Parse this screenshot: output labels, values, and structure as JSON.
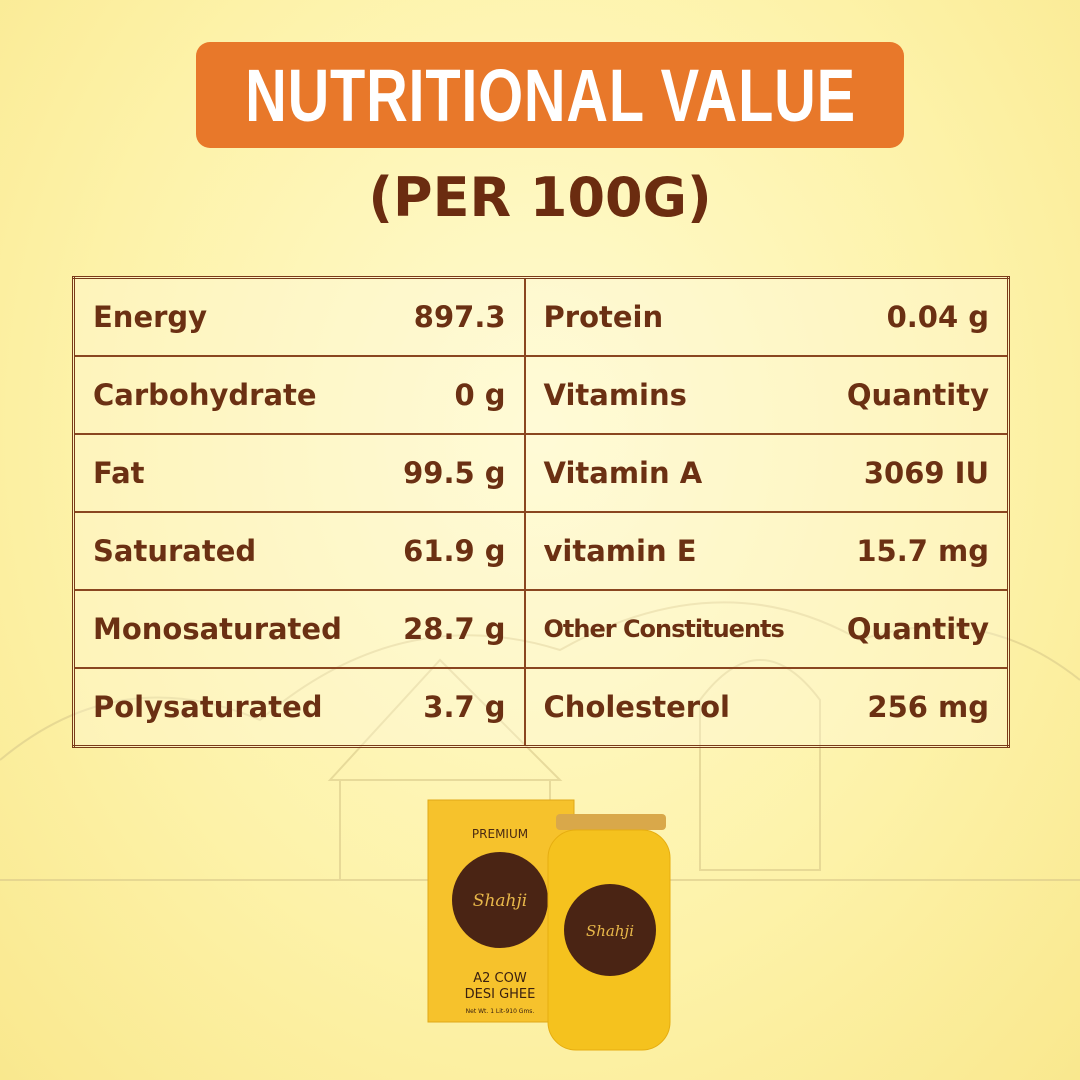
{
  "header": {
    "title": "NUTRITIONAL VALUE",
    "subtitle": "(PER 100G)"
  },
  "table": {
    "rows": [
      [
        "Energy",
        "897.3",
        "Protein",
        "0.04 g"
      ],
      [
        "Carbohydrate",
        "0 g",
        "Vitamins",
        "Quantity"
      ],
      [
        "Fat",
        "99.5 g",
        "Vitamin A",
        "3069 IU"
      ],
      [
        "Saturated",
        "61.9 g",
        "vitamin E",
        "15.7 mg"
      ],
      [
        "Monosaturated",
        "28.7 g",
        "Other Constituents",
        "Quantity"
      ],
      [
        "Polysaturated",
        "3.7 g",
        "Cholesterol",
        "256 mg"
      ]
    ]
  },
  "product": {
    "box": {
      "tag": "PREMIUM",
      "brand": "Shahji",
      "name": [
        "A2 COW",
        "DESI GHEE"
      ],
      "weight": "Net Wt. 1 Lit-910 Gms."
    },
    "jar": {
      "brand": "Shahji"
    }
  }
}
